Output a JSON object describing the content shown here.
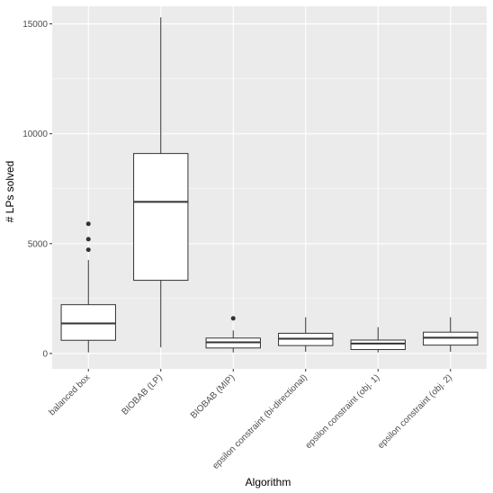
{
  "chart_data": {
    "type": "box",
    "xlabel": "Algorithm",
    "ylabel": "# LPs solved",
    "ylim": [
      -700,
      15800
    ],
    "yticks": [
      0,
      5000,
      10000,
      15000
    ],
    "grid": true,
    "categories": [
      "balanced box",
      "BIOBAB (LP)",
      "BIOBAB (MIP)",
      "epsilon constraint (bi-directional)",
      "epsilon constraint (obj. 1)",
      "epsilon constraint (obj. 2)"
    ],
    "boxes": [
      {
        "min": 50,
        "q1": 600,
        "median": 1370,
        "q3": 2220,
        "max": 4250,
        "outliers": [
          4720,
          5200,
          5900
        ]
      },
      {
        "min": 280,
        "q1": 3330,
        "median": 6900,
        "q3": 9100,
        "max": 15300,
        "outliers": []
      },
      {
        "min": 50,
        "q1": 250,
        "median": 510,
        "q3": 700,
        "max": 1050,
        "outliers": [
          1600
        ]
      },
      {
        "min": 80,
        "q1": 360,
        "median": 670,
        "q3": 920,
        "max": 1650,
        "outliers": []
      },
      {
        "min": 50,
        "q1": 180,
        "median": 450,
        "q3": 610,
        "max": 1200,
        "outliers": []
      },
      {
        "min": 80,
        "q1": 380,
        "median": 720,
        "q3": 970,
        "max": 1650,
        "outliers": []
      }
    ],
    "colors": {
      "panel": "#ebebeb",
      "grid_major": "#ffffff",
      "box_fill": "#ffffff",
      "box_stroke": "#333333",
      "outlier": "#333333"
    }
  }
}
